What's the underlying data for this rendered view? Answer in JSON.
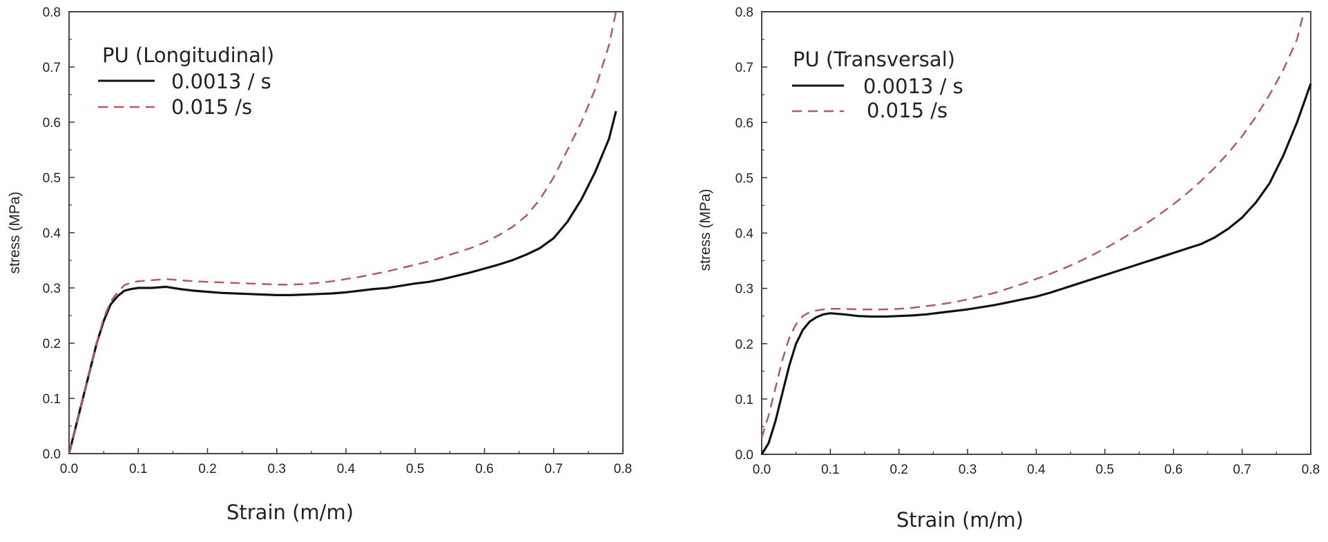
{
  "chart_data": [
    {
      "type": "line",
      "legend_title": "PU (Longitudinal)",
      "xlabel": "Strain (m/m)",
      "ylabel": "stress (MPa)",
      "xlim": [
        0,
        0.8
      ],
      "ylim": [
        0,
        0.8
      ],
      "x_ticks": [
        "0.0",
        "0.1",
        "0.2",
        "0.3",
        "0.4",
        "0.5",
        "0.6",
        "0.7",
        "0.8"
      ],
      "y_ticks": [
        "0.0",
        "0.1",
        "0.2",
        "0.3",
        "0.4",
        "0.5",
        "0.6",
        "0.7",
        "0.8"
      ],
      "grid": false,
      "legend_position": "top-left",
      "series": [
        {
          "name": "0.0013 / s",
          "color": "#111111",
          "style": "solid",
          "x": [
            0,
            0.01,
            0.02,
            0.03,
            0.04,
            0.05,
            0.06,
            0.07,
            0.08,
            0.09,
            0.1,
            0.12,
            0.14,
            0.16,
            0.18,
            0.2,
            0.22,
            0.24,
            0.26,
            0.28,
            0.3,
            0.32,
            0.34,
            0.36,
            0.38,
            0.4,
            0.42,
            0.44,
            0.46,
            0.48,
            0.5,
            0.52,
            0.54,
            0.56,
            0.58,
            0.6,
            0.62,
            0.64,
            0.66,
            0.68,
            0.7,
            0.72,
            0.74,
            0.76,
            0.78,
            0.79
          ],
          "y": [
            0.0,
            0.05,
            0.1,
            0.15,
            0.2,
            0.24,
            0.27,
            0.285,
            0.295,
            0.298,
            0.3,
            0.3,
            0.302,
            0.298,
            0.295,
            0.293,
            0.291,
            0.29,
            0.289,
            0.288,
            0.287,
            0.287,
            0.288,
            0.289,
            0.29,
            0.292,
            0.295,
            0.298,
            0.3,
            0.304,
            0.308,
            0.311,
            0.316,
            0.322,
            0.328,
            0.335,
            0.342,
            0.35,
            0.36,
            0.372,
            0.39,
            0.42,
            0.46,
            0.51,
            0.57,
            0.62
          ]
        },
        {
          "name": "0.015 /s",
          "color": "#b55a5a",
          "style": "dashed",
          "x": [
            0,
            0.01,
            0.02,
            0.03,
            0.04,
            0.05,
            0.06,
            0.07,
            0.08,
            0.09,
            0.1,
            0.12,
            0.14,
            0.16,
            0.18,
            0.2,
            0.22,
            0.24,
            0.26,
            0.28,
            0.3,
            0.32,
            0.34,
            0.36,
            0.38,
            0.4,
            0.42,
            0.44,
            0.46,
            0.48,
            0.5,
            0.52,
            0.54,
            0.56,
            0.58,
            0.6,
            0.62,
            0.64,
            0.66,
            0.68,
            0.7,
            0.72,
            0.74,
            0.76,
            0.78,
            0.79
          ],
          "y": [
            0.0,
            0.05,
            0.1,
            0.15,
            0.2,
            0.245,
            0.275,
            0.292,
            0.305,
            0.31,
            0.312,
            0.314,
            0.316,
            0.314,
            0.312,
            0.311,
            0.31,
            0.309,
            0.308,
            0.307,
            0.306,
            0.306,
            0.307,
            0.309,
            0.312,
            0.316,
            0.32,
            0.325,
            0.33,
            0.336,
            0.342,
            0.348,
            0.356,
            0.364,
            0.372,
            0.382,
            0.395,
            0.41,
            0.43,
            0.46,
            0.5,
            0.55,
            0.6,
            0.66,
            0.74,
            0.8
          ]
        }
      ]
    },
    {
      "type": "line",
      "legend_title": "PU (Transversal)",
      "xlabel": "Strain (m/m)",
      "ylabel": "stress (MPa)",
      "xlim": [
        0,
        0.8
      ],
      "ylim": [
        0,
        0.8
      ],
      "x_ticks": [
        "0.0",
        "0.1",
        "0.2",
        "0.3",
        "0.4",
        "0.5",
        "0.6",
        "0.7",
        "0.8"
      ],
      "y_ticks": [
        "0.0",
        "0.1",
        "0.2",
        "0.3",
        "0.4",
        "0.5",
        "0.6",
        "0.7",
        "0.8"
      ],
      "grid": false,
      "legend_position": "top-left",
      "series": [
        {
          "name": "0.0013 / s",
          "color": "#111111",
          "style": "solid",
          "x": [
            0,
            0.01,
            0.02,
            0.03,
            0.04,
            0.05,
            0.06,
            0.07,
            0.08,
            0.09,
            0.1,
            0.12,
            0.14,
            0.16,
            0.18,
            0.2,
            0.22,
            0.24,
            0.26,
            0.28,
            0.3,
            0.32,
            0.34,
            0.36,
            0.38,
            0.4,
            0.42,
            0.44,
            0.46,
            0.48,
            0.5,
            0.52,
            0.54,
            0.56,
            0.58,
            0.6,
            0.62,
            0.64,
            0.66,
            0.68,
            0.7,
            0.72,
            0.74,
            0.76,
            0.78,
            0.8
          ],
          "y": [
            0.0,
            0.02,
            0.06,
            0.11,
            0.16,
            0.2,
            0.225,
            0.24,
            0.248,
            0.253,
            0.255,
            0.253,
            0.25,
            0.249,
            0.249,
            0.25,
            0.251,
            0.253,
            0.256,
            0.259,
            0.262,
            0.266,
            0.27,
            0.275,
            0.28,
            0.285,
            0.292,
            0.3,
            0.308,
            0.316,
            0.324,
            0.332,
            0.34,
            0.348,
            0.356,
            0.364,
            0.372,
            0.38,
            0.392,
            0.408,
            0.428,
            0.455,
            0.49,
            0.54,
            0.6,
            0.67
          ]
        },
        {
          "name": "0.015 /s",
          "color": "#b55a5a",
          "style": "dashed",
          "x": [
            0,
            0.01,
            0.02,
            0.03,
            0.04,
            0.05,
            0.06,
            0.07,
            0.08,
            0.09,
            0.1,
            0.12,
            0.14,
            0.16,
            0.18,
            0.2,
            0.22,
            0.24,
            0.26,
            0.28,
            0.3,
            0.32,
            0.34,
            0.36,
            0.38,
            0.4,
            0.42,
            0.44,
            0.46,
            0.48,
            0.5,
            0.52,
            0.54,
            0.56,
            0.58,
            0.6,
            0.62,
            0.64,
            0.66,
            0.68,
            0.7,
            0.72,
            0.74,
            0.76,
            0.78,
            0.79
          ],
          "y": [
            0.03,
            0.07,
            0.12,
            0.17,
            0.21,
            0.235,
            0.25,
            0.257,
            0.26,
            0.262,
            0.263,
            0.263,
            0.262,
            0.262,
            0.262,
            0.263,
            0.265,
            0.268,
            0.271,
            0.275,
            0.28,
            0.286,
            0.292,
            0.3,
            0.308,
            0.317,
            0.326,
            0.336,
            0.347,
            0.359,
            0.372,
            0.386,
            0.401,
            0.417,
            0.434,
            0.452,
            0.472,
            0.494,
            0.518,
            0.545,
            0.575,
            0.61,
            0.65,
            0.695,
            0.75,
            0.8
          ]
        }
      ]
    }
  ]
}
